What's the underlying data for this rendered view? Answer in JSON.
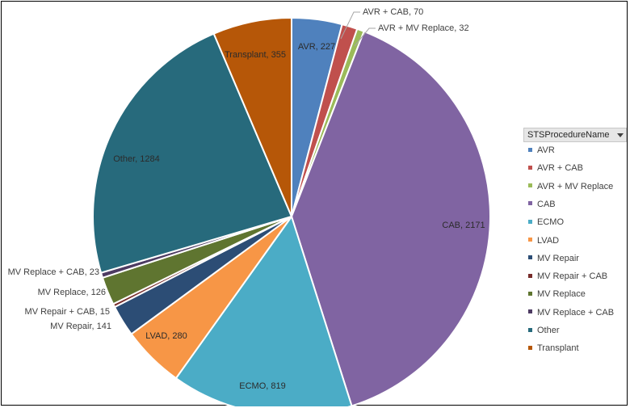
{
  "chart_data": {
    "type": "pie",
    "legend_title": "STSProcedureName",
    "legend_placement": "right",
    "slices": [
      {
        "name": "AVR",
        "value": 227,
        "color": "#4f81bd",
        "label": "AVR, 227"
      },
      {
        "name": "AVR + CAB",
        "value": 70,
        "color": "#c0504d",
        "label": "AVR + CAB, 70"
      },
      {
        "name": "AVR + MV Replace",
        "value": 32,
        "color": "#9bbb59",
        "label": "AVR + MV Replace, 32"
      },
      {
        "name": "CAB",
        "value": 2171,
        "color": "#8064a2",
        "label": "CAB, 2171"
      },
      {
        "name": "ECMO",
        "value": 819,
        "color": "#4bacc6",
        "label": "ECMO, 819"
      },
      {
        "name": "LVAD",
        "value": 280,
        "color": "#f79646",
        "label": "LVAD, 280"
      },
      {
        "name": "MV Repair",
        "value": 141,
        "color": "#2c4d75",
        "label": "MV Repair, 141"
      },
      {
        "name": "MV Repair + CAB",
        "value": 15,
        "color": "#772c2a",
        "label": "MV Repair + CAB, 15"
      },
      {
        "name": "MV Replace",
        "value": 126,
        "color": "#5f7530",
        "label": "MV Replace, 126"
      },
      {
        "name": "MV Replace + CAB",
        "value": 23,
        "color": "#4d3b62",
        "label": "MV Replace + CAB, 23"
      },
      {
        "name": "Other",
        "value": 1284,
        "color": "#276a7c",
        "label": "Other, 1284"
      },
      {
        "name": "Transplant",
        "value": 355,
        "color": "#b65708",
        "label": "Transplant, 355"
      }
    ]
  }
}
